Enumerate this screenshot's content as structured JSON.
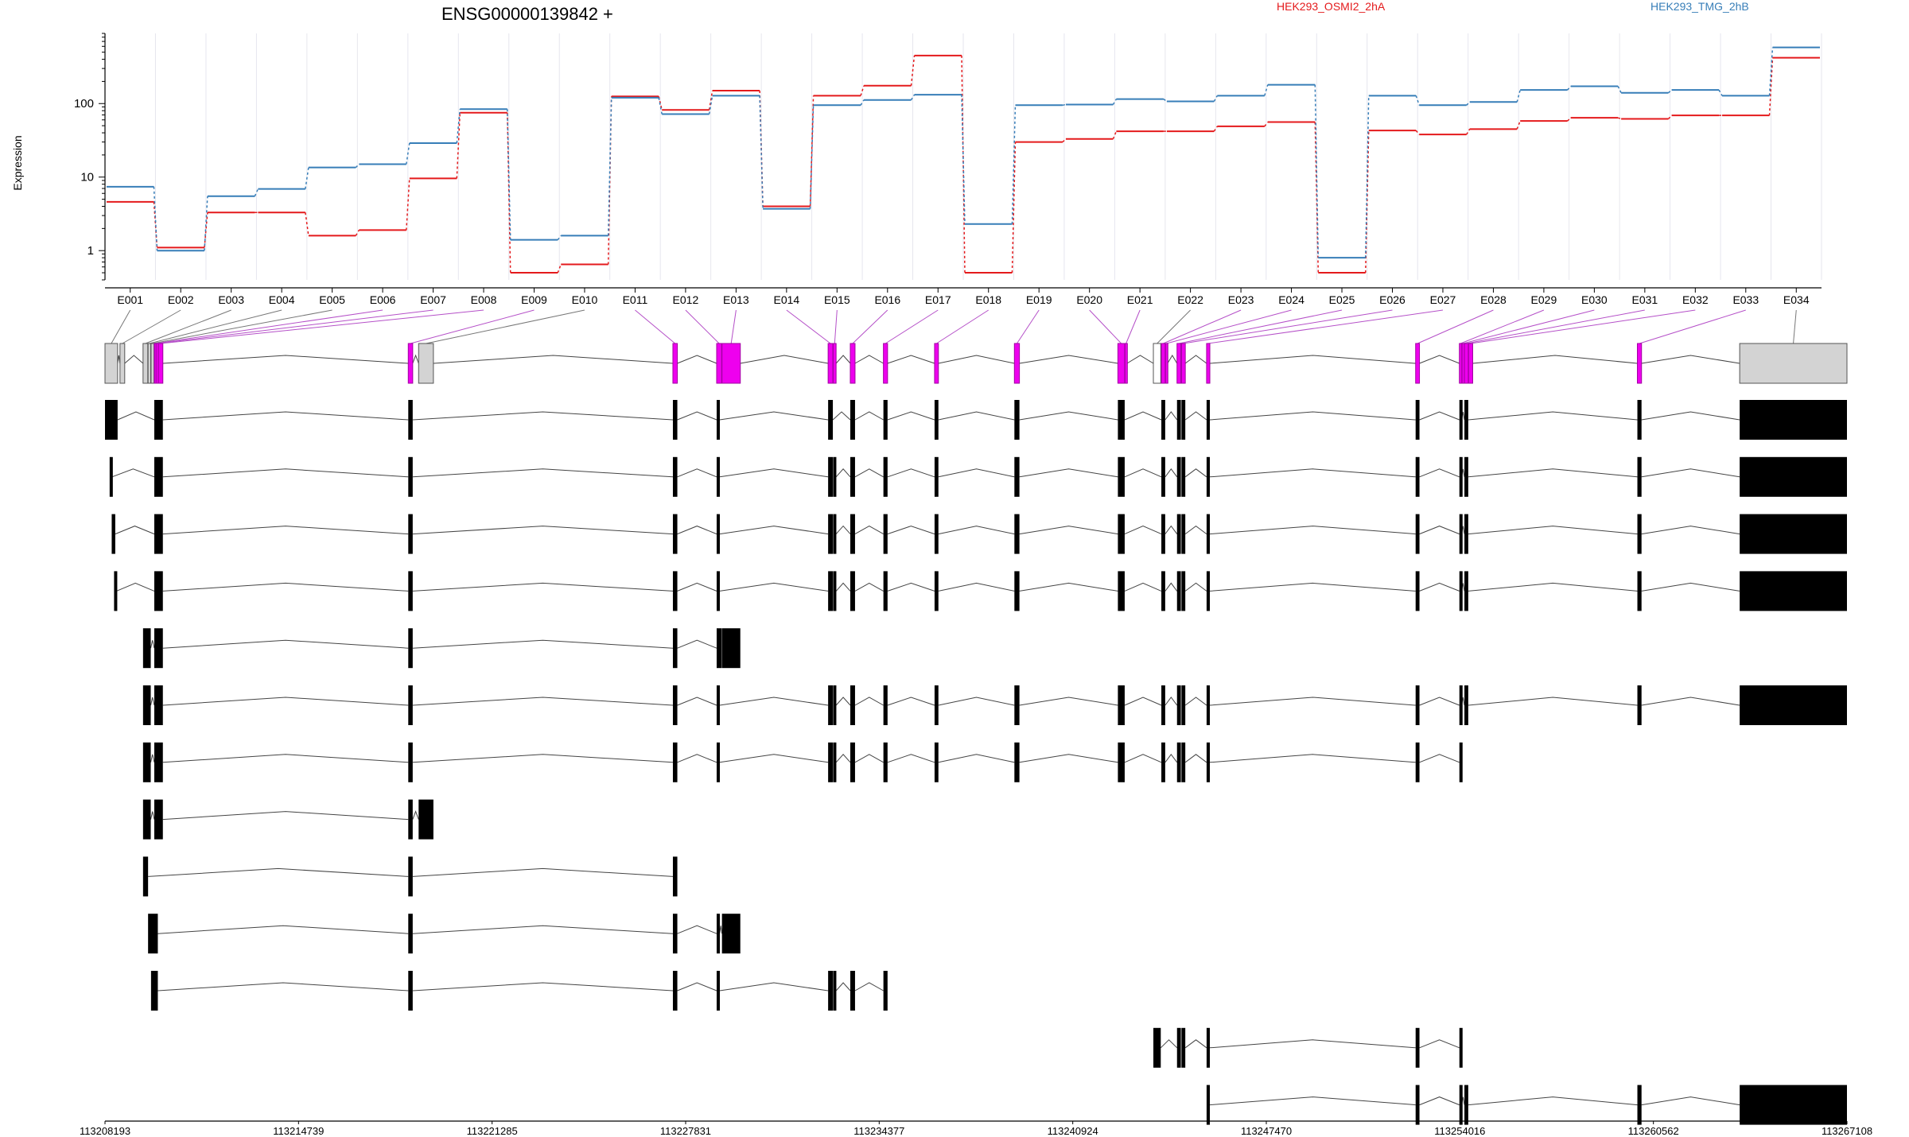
{
  "chart_data": {
    "type": "line",
    "title": "ENSG00000139842 +",
    "ylabel": "Expression",
    "xlabel": "",
    "yscale": "log",
    "ylim": [
      0.4,
      900
    ],
    "yticks": [
      1,
      10,
      100
    ],
    "ytick_labels": [
      "1",
      "10",
      "100"
    ],
    "categories": [
      "E001",
      "E002",
      "E003",
      "E004",
      "E005",
      "E006",
      "E007",
      "E008",
      "E009",
      "E010",
      "E011",
      "E012",
      "E013",
      "E014",
      "E015",
      "E016",
      "E017",
      "E018",
      "E019",
      "E020",
      "E021",
      "E022",
      "E023",
      "E024",
      "E025",
      "E026",
      "E027",
      "E028",
      "E029",
      "E030",
      "E031",
      "E032",
      "E033",
      "E034"
    ],
    "series": [
      {
        "name": "HEK293_OSMI2_2hA",
        "color": "#e41a1c",
        "values": [
          4.6,
          1.1,
          3.3,
          3.3,
          1.6,
          1.9,
          9.6,
          75,
          0.5,
          0.65,
          125,
          82,
          150,
          4.0,
          128,
          175,
          450,
          0.5,
          30,
          33,
          42,
          42,
          49,
          56,
          0.5,
          43,
          38,
          45,
          58,
          64,
          62,
          69,
          69,
          420
        ]
      },
      {
        "name": "HEK293_TMG_2hB",
        "color": "#377eb8",
        "values": [
          7.4,
          1.0,
          5.5,
          6.9,
          13.5,
          15,
          29,
          84,
          1.4,
          1.6,
          120,
          72,
          128,
          3.7,
          95,
          112,
          132,
          2.3,
          95,
          97,
          115,
          107,
          128,
          180,
          0.8,
          128,
          95,
          105,
          153,
          172,
          140,
          153,
          128,
          580
        ]
      }
    ],
    "genomic_axis": {
      "start": 113208193,
      "end": 113267108,
      "tick_labels": [
        "113208193",
        "113214739",
        "113221285",
        "113227831",
        "113234377",
        "113240924",
        "113247470",
        "113254016",
        "113260562",
        "113267108"
      ]
    },
    "gene_model": {
      "exons": [
        {
          "id": "E001",
          "start": 113208193,
          "end": 113208620,
          "fill": "#d3d3d3"
        },
        {
          "id": "E002",
          "start": 113208700,
          "end": 113208860,
          "fill": "#d3d3d3"
        },
        {
          "id": "E003",
          "start": 113209480,
          "end": 113209640,
          "fill": "#d3d3d3"
        },
        {
          "id": "E004",
          "start": 113209650,
          "end": 113209740,
          "fill": "#d3d3d3"
        },
        {
          "id": "E005",
          "start": 113209750,
          "end": 113209850,
          "fill": "#d3d3d3"
        },
        {
          "id": "E006",
          "start": 113209860,
          "end": 113209910,
          "fill": "#ee00ee"
        },
        {
          "id": "E007",
          "start": 113209920,
          "end": 113209980,
          "fill": "#ee00ee"
        },
        {
          "id": "E008",
          "start": 113210000,
          "end": 113210150,
          "fill": "#ee00ee"
        },
        {
          "id": "E009",
          "start": 113218450,
          "end": 113218600,
          "fill": "#ee00ee"
        },
        {
          "id": "E010",
          "start": 113218800,
          "end": 113219300,
          "fill": "#d3d3d3"
        },
        {
          "id": "E011",
          "start": 113227400,
          "end": 113227550,
          "fill": "#ee00ee"
        },
        {
          "id": "E012",
          "start": 113228880,
          "end": 113229050,
          "fill": "#ee00ee"
        },
        {
          "id": "E013",
          "start": 113229060,
          "end": 113229680,
          "fill": "#ee00ee"
        },
        {
          "id": "E014",
          "start": 113232650,
          "end": 113232810,
          "fill": "#ee00ee"
        },
        {
          "id": "E015",
          "start": 113232820,
          "end": 113232920,
          "fill": "#ee00ee"
        },
        {
          "id": "E016",
          "start": 113233400,
          "end": 113233560,
          "fill": "#ee00ee"
        },
        {
          "id": "E017",
          "start": 113234520,
          "end": 113234660,
          "fill": "#ee00ee"
        },
        {
          "id": "E018",
          "start": 113236250,
          "end": 113236380,
          "fill": "#ee00ee"
        },
        {
          "id": "E019",
          "start": 113238950,
          "end": 113239120,
          "fill": "#ee00ee"
        },
        {
          "id": "E020",
          "start": 113242450,
          "end": 113242680,
          "fill": "#ee00ee"
        },
        {
          "id": "E021",
          "start": 113242690,
          "end": 113242760,
          "fill": "#ee00ee"
        },
        {
          "id": "E022",
          "start": 113243650,
          "end": 113243900,
          "fill": "#ffffff"
        },
        {
          "id": "E023",
          "start": 113243920,
          "end": 113244050,
          "fill": "#ee00ee"
        },
        {
          "id": "E024",
          "start": 113244060,
          "end": 113244130,
          "fill": "#ee00ee"
        },
        {
          "id": "E025",
          "start": 113244450,
          "end": 113244580,
          "fill": "#ee00ee"
        },
        {
          "id": "E026",
          "start": 113244600,
          "end": 113244730,
          "fill": "#ee00ee"
        },
        {
          "id": "E027",
          "start": 113245450,
          "end": 113245560,
          "fill": "#ee00ee"
        },
        {
          "id": "E028",
          "start": 113252520,
          "end": 113252650,
          "fill": "#ee00ee"
        },
        {
          "id": "E029",
          "start": 113254000,
          "end": 113254080,
          "fill": "#ee00ee"
        },
        {
          "id": "E030",
          "start": 113254090,
          "end": 113254160,
          "fill": "#ee00ee"
        },
        {
          "id": "E031",
          "start": 113254170,
          "end": 113254300,
          "fill": "#ee00ee"
        },
        {
          "id": "E032",
          "start": 113254310,
          "end": 113254450,
          "fill": "#ee00ee"
        },
        {
          "id": "E033",
          "start": 113260020,
          "end": 113260160,
          "fill": "#ee00ee"
        },
        {
          "id": "E034",
          "start": 113263480,
          "end": 113267108,
          "fill": "#d3d3d3"
        }
      ],
      "transcripts": [
        [
          [
            113208193,
            113208620
          ],
          [
            113209860,
            113210150
          ],
          [
            113218450,
            113218600
          ],
          [
            113227400,
            113227550
          ],
          [
            113228880,
            113228980
          ],
          [
            113232650,
            113232810
          ],
          [
            113233400,
            113233560
          ],
          [
            113234520,
            113234660
          ],
          [
            113236250,
            113236380
          ],
          [
            113238950,
            113239120
          ],
          [
            113242450,
            113242680
          ],
          [
            113243920,
            113244050
          ],
          [
            113244450,
            113244580
          ],
          [
            113244600,
            113244730
          ],
          [
            113245450,
            113245560
          ],
          [
            113252520,
            113252650
          ],
          [
            113254000,
            113254080
          ],
          [
            113254170,
            113254300
          ],
          [
            113260020,
            113260160
          ],
          [
            113263480,
            113267108
          ]
        ],
        [
          [
            113208350,
            113208430
          ],
          [
            113209860,
            113210150
          ],
          [
            113218450,
            113218600
          ],
          [
            113227400,
            113227550
          ],
          [
            113228880,
            113228980
          ],
          [
            113232650,
            113232810
          ],
          [
            113232820,
            113232920
          ],
          [
            113233400,
            113233560
          ],
          [
            113234520,
            113234660
          ],
          [
            113236250,
            113236380
          ],
          [
            113238950,
            113239120
          ],
          [
            113242450,
            113242680
          ],
          [
            113243920,
            113244050
          ],
          [
            113244450,
            113244580
          ],
          [
            113244600,
            113244730
          ],
          [
            113245450,
            113245560
          ],
          [
            113252520,
            113252650
          ],
          [
            113254000,
            113254080
          ],
          [
            113254170,
            113254300
          ],
          [
            113260020,
            113260160
          ],
          [
            113263480,
            113267108
          ]
        ],
        [
          [
            113208420,
            113208540
          ],
          [
            113209860,
            113210150
          ],
          [
            113218450,
            113218600
          ],
          [
            113227400,
            113227550
          ],
          [
            113228880,
            113228980
          ],
          [
            113232650,
            113232810
          ],
          [
            113232820,
            113232920
          ],
          [
            113233400,
            113233560
          ],
          [
            113234520,
            113234660
          ],
          [
            113236250,
            113236380
          ],
          [
            113238950,
            113239120
          ],
          [
            113242450,
            113242680
          ],
          [
            113243920,
            113244050
          ],
          [
            113244450,
            113244580
          ],
          [
            113244600,
            113244730
          ],
          [
            113245450,
            113245560
          ],
          [
            113252520,
            113252650
          ],
          [
            113254000,
            113254080
          ],
          [
            113254170,
            113254300
          ],
          [
            113260020,
            113260160
          ],
          [
            113263480,
            113267108
          ]
        ],
        [
          [
            113208500,
            113208580
          ],
          [
            113209860,
            113210150
          ],
          [
            113218450,
            113218600
          ],
          [
            113227400,
            113227550
          ],
          [
            113228880,
            113228980
          ],
          [
            113232650,
            113232810
          ],
          [
            113232820,
            113232920
          ],
          [
            113233400,
            113233560
          ],
          [
            113234520,
            113234660
          ],
          [
            113236250,
            113236380
          ],
          [
            113238950,
            113239120
          ],
          [
            113242450,
            113242680
          ],
          [
            113243920,
            113244050
          ],
          [
            113244450,
            113244580
          ],
          [
            113244600,
            113244730
          ],
          [
            113245450,
            113245560
          ],
          [
            113252520,
            113252650
          ],
          [
            113254000,
            113254080
          ],
          [
            113254170,
            113254300
          ],
          [
            113260020,
            113260160
          ],
          [
            113263480,
            113267108
          ]
        ],
        [
          [
            113209480,
            113209740
          ],
          [
            113209860,
            113210150
          ],
          [
            113218450,
            113218600
          ],
          [
            113227400,
            113227550
          ],
          [
            113228880,
            113229050
          ],
          [
            113229060,
            113229680
          ]
        ],
        [
          [
            113209480,
            113209740
          ],
          [
            113209860,
            113210150
          ],
          [
            113218450,
            113218600
          ],
          [
            113227400,
            113227550
          ],
          [
            113228880,
            113228980
          ],
          [
            113232650,
            113232810
          ],
          [
            113232820,
            113232920
          ],
          [
            113233400,
            113233560
          ],
          [
            113234520,
            113234660
          ],
          [
            113236250,
            113236380
          ],
          [
            113238950,
            113239120
          ],
          [
            113242450,
            113242680
          ],
          [
            113243920,
            113244050
          ],
          [
            113244450,
            113244580
          ],
          [
            113244600,
            113244730
          ],
          [
            113245450,
            113245560
          ],
          [
            113252520,
            113252650
          ],
          [
            113254000,
            113254080
          ],
          [
            113254170,
            113254300
          ],
          [
            113260020,
            113260160
          ],
          [
            113263480,
            113267108
          ]
        ],
        [
          [
            113209480,
            113209740
          ],
          [
            113209860,
            113210150
          ],
          [
            113218450,
            113218600
          ],
          [
            113227400,
            113227550
          ],
          [
            113228880,
            113228980
          ],
          [
            113232650,
            113232810
          ],
          [
            113232820,
            113232920
          ],
          [
            113233400,
            113233560
          ],
          [
            113234520,
            113234660
          ],
          [
            113236250,
            113236380
          ],
          [
            113238950,
            113239120
          ],
          [
            113242450,
            113242680
          ],
          [
            113243920,
            113244050
          ],
          [
            113244450,
            113244580
          ],
          [
            113244600,
            113244730
          ],
          [
            113245450,
            113245560
          ],
          [
            113252520,
            113252650
          ],
          [
            113254000,
            113254080
          ]
        ],
        [
          [
            113209480,
            113209740
          ],
          [
            113209860,
            113210150
          ],
          [
            113218450,
            113218600
          ],
          [
            113218800,
            113219300
          ]
        ],
        [
          [
            113209480,
            113209650
          ],
          [
            113218450,
            113218600
          ],
          [
            113227400,
            113227550
          ]
        ],
        [
          [
            113209650,
            113209980
          ],
          [
            113218450,
            113218600
          ],
          [
            113227400,
            113227550
          ],
          [
            113228880,
            113228980
          ],
          [
            113229060,
            113229680
          ]
        ],
        [
          [
            113209750,
            113209980
          ],
          [
            113218450,
            113218600
          ],
          [
            113227400,
            113227550
          ],
          [
            113228880,
            113228980
          ],
          [
            113232650,
            113232810
          ],
          [
            113232820,
            113232920
          ],
          [
            113233400,
            113233560
          ],
          [
            113234520,
            113234660
          ]
        ],
        [
          [
            113243650,
            113243900
          ],
          [
            113244450,
            113244580
          ],
          [
            113244600,
            113244730
          ],
          [
            113245450,
            113245560
          ],
          [
            113252520,
            113252650
          ],
          [
            113254000,
            113254080
          ]
        ],
        [
          [
            113245450,
            113245560
          ],
          [
            113252520,
            113252650
          ],
          [
            113254000,
            113254080
          ],
          [
            113254170,
            113254300
          ],
          [
            113260020,
            113260160
          ],
          [
            113263480,
            113267108
          ]
        ]
      ]
    },
    "legend": "top-right",
    "grid": true
  }
}
